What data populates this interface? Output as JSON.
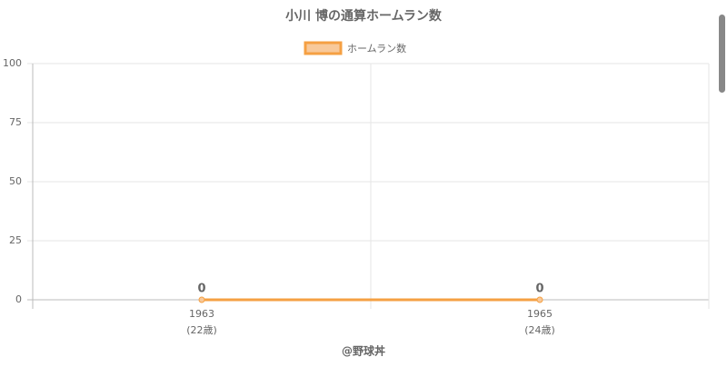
{
  "chart_data": {
    "type": "line",
    "title": "小川 博の通算ホームラン数",
    "categories": [
      "1963",
      "1965"
    ],
    "category_sublabels": [
      "(22歳)",
      "(24歳)"
    ],
    "series": [
      {
        "name": "ホームラン数",
        "color": "#f5a043",
        "values": [
          0,
          0
        ]
      }
    ],
    "x_label": "@野球丼",
    "ylim": [
      0,
      100
    ],
    "yticks": [
      0,
      25,
      50,
      75,
      100
    ],
    "grid": true,
    "legend": "top"
  }
}
